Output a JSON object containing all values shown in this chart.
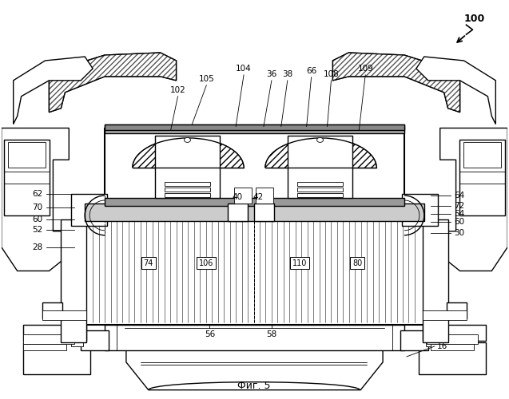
{
  "caption": "Фиг. 5",
  "bg_color": "#ffffff",
  "fig_width": 6.37,
  "fig_height": 5.0,
  "dpi": 100
}
